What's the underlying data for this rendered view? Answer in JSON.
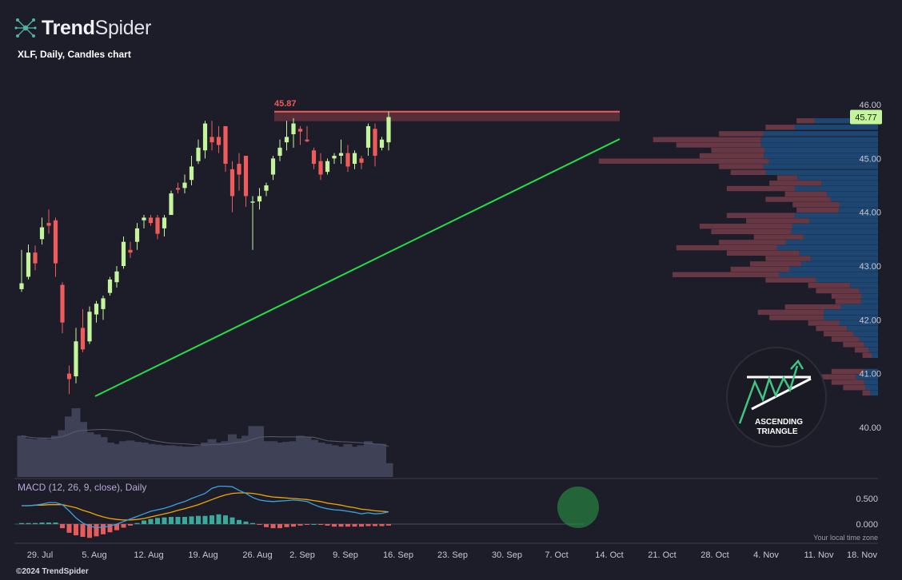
{
  "brand": {
    "name_bold": "Trend",
    "name_light": "Spider"
  },
  "subtitle": "XLF, Daily, Candles chart",
  "copyright": "©2024 TrendSpider",
  "chart_data": {
    "type": "candlestick",
    "symbol": "XLF",
    "interval": "Daily",
    "ylim": [
      39.9,
      46.1
    ],
    "y_ticks": [
      "40.00",
      "41.00",
      "42.00",
      "43.00",
      "44.00",
      "45.00",
      "46.00"
    ],
    "x_ticks": [
      "29. Jul",
      "5. Aug",
      "12. Aug",
      "19. Aug",
      "26. Aug",
      "2. Sep",
      "9. Sep",
      "16. Sep",
      "23. Sep",
      "30. Sep",
      "7. Oct",
      "14. Oct",
      "21. Oct",
      "28. Oct",
      "4. Nov",
      "11. Nov",
      "18. Nov"
    ],
    "last_price": "45.77",
    "resistance": {
      "label": "45.87",
      "value": 45.87
    },
    "trendline": {
      "from": {
        "date": "5. Aug",
        "value": 40.6
      },
      "to": {
        "date": "10. Oct",
        "value": 45.35
      }
    },
    "candles": [
      {
        "d": "2024-07-25",
        "o": 42.57,
        "h": 43.3,
        "l": 42.52,
        "c": 42.68
      },
      {
        "d": "2024-07-26",
        "o": 42.8,
        "h": 43.4,
        "l": 42.75,
        "c": 43.25
      },
      {
        "d": "2024-07-29",
        "o": 43.25,
        "h": 43.38,
        "l": 42.92,
        "c": 43.05
      },
      {
        "d": "2024-07-30",
        "o": 43.5,
        "h": 43.9,
        "l": 43.4,
        "c": 43.72
      },
      {
        "d": "2024-07-31",
        "o": 43.8,
        "h": 44.05,
        "l": 43.6,
        "c": 43.75
      },
      {
        "d": "2024-08-01",
        "o": 43.85,
        "h": 43.9,
        "l": 42.8,
        "c": 43.05
      },
      {
        "d": "2024-08-02",
        "o": 42.65,
        "h": 42.7,
        "l": 41.75,
        "c": 41.95
      },
      {
        "d": "2024-08-05",
        "o": 41.0,
        "h": 41.15,
        "l": 40.62,
        "c": 40.9
      },
      {
        "d": "2024-08-06",
        "o": 40.95,
        "h": 41.85,
        "l": 40.82,
        "c": 41.6
      },
      {
        "d": "2024-08-07",
        "o": 41.85,
        "h": 42.2,
        "l": 41.4,
        "c": 41.45
      },
      {
        "d": "2024-08-08",
        "o": 41.6,
        "h": 42.25,
        "l": 41.55,
        "c": 42.15
      },
      {
        "d": "2024-08-09",
        "o": 42.1,
        "h": 42.35,
        "l": 41.95,
        "c": 42.3
      },
      {
        "d": "2024-08-12",
        "o": 42.2,
        "h": 42.45,
        "l": 42.0,
        "c": 42.4
      },
      {
        "d": "2024-08-13",
        "o": 42.5,
        "h": 42.8,
        "l": 42.45,
        "c": 42.75
      },
      {
        "d": "2024-08-14",
        "o": 42.7,
        "h": 43.0,
        "l": 42.6,
        "c": 42.9
      },
      {
        "d": "2024-08-15",
        "o": 43.0,
        "h": 43.55,
        "l": 42.95,
        "c": 43.45
      },
      {
        "d": "2024-08-16",
        "o": 43.3,
        "h": 43.45,
        "l": 43.15,
        "c": 43.25
      },
      {
        "d": "2024-08-19",
        "o": 43.45,
        "h": 43.8,
        "l": 43.3,
        "c": 43.7
      },
      {
        "d": "2024-08-20",
        "o": 43.85,
        "h": 43.95,
        "l": 43.7,
        "c": 43.9
      },
      {
        "d": "2024-08-21",
        "o": 43.9,
        "h": 43.95,
        "l": 43.75,
        "c": 43.8
      },
      {
        "d": "2024-08-22",
        "o": 43.9,
        "h": 43.95,
        "l": 43.5,
        "c": 43.6
      },
      {
        "d": "2024-08-23",
        "o": 43.7,
        "h": 43.95,
        "l": 43.55,
        "c": 43.9
      },
      {
        "d": "2024-08-26",
        "o": 43.95,
        "h": 44.4,
        "l": 43.95,
        "c": 44.35
      },
      {
        "d": "2024-08-27",
        "o": 44.45,
        "h": 44.55,
        "l": 44.35,
        "c": 44.42
      },
      {
        "d": "2024-08-28",
        "o": 44.45,
        "h": 44.7,
        "l": 44.35,
        "c": 44.55
      },
      {
        "d": "2024-08-29",
        "o": 44.6,
        "h": 45.05,
        "l": 44.5,
        "c": 44.85
      },
      {
        "d": "2024-08-30",
        "o": 44.95,
        "h": 45.35,
        "l": 44.9,
        "c": 45.2
      },
      {
        "d": "2024-09-03",
        "o": 45.15,
        "h": 45.7,
        "l": 45.0,
        "c": 45.65
      },
      {
        "d": "2024-09-04",
        "o": 45.4,
        "h": 45.7,
        "l": 45.15,
        "c": 45.3
      },
      {
        "d": "2024-09-05",
        "o": 45.4,
        "h": 45.6,
        "l": 45.1,
        "c": 45.25
      },
      {
        "d": "2024-09-06",
        "o": 45.6,
        "h": 45.6,
        "l": 44.75,
        "c": 44.9
      },
      {
        "d": "2024-09-09",
        "o": 44.8,
        "h": 44.95,
        "l": 44.0,
        "c": 44.3
      },
      {
        "d": "2024-09-10",
        "o": 44.9,
        "h": 45.1,
        "l": 44.4,
        "c": 44.7
      },
      {
        "d": "2024-09-11",
        "o": 45.05,
        "h": 45.05,
        "l": 44.1,
        "c": 44.3
      },
      {
        "d": "2024-09-12",
        "o": 44.2,
        "h": 44.3,
        "l": 43.3,
        "c": 44.2
      },
      {
        "d": "2024-09-13",
        "o": 44.2,
        "h": 44.45,
        "l": 44.05,
        "c": 44.3
      },
      {
        "d": "2024-09-16",
        "o": 44.4,
        "h": 44.55,
        "l": 44.3,
        "c": 44.5
      },
      {
        "d": "2024-09-17",
        "o": 44.7,
        "h": 45.05,
        "l": 44.6,
        "c": 45.0
      },
      {
        "d": "2024-09-18",
        "o": 45.05,
        "h": 45.35,
        "l": 44.95,
        "c": 45.2
      },
      {
        "d": "2024-09-19",
        "o": 45.3,
        "h": 45.7,
        "l": 45.15,
        "c": 45.4
      },
      {
        "d": "2024-09-20",
        "o": 45.45,
        "h": 45.75,
        "l": 45.2,
        "c": 45.65
      },
      {
        "d": "2024-09-23",
        "o": 45.55,
        "h": 45.6,
        "l": 45.25,
        "c": 45.5
      },
      {
        "d": "2024-09-24",
        "o": 45.35,
        "h": 45.6,
        "l": 45.3,
        "c": 45.32
      },
      {
        "d": "2024-09-25",
        "o": 45.15,
        "h": 45.2,
        "l": 44.8,
        "c": 44.9
      },
      {
        "d": "2024-09-26",
        "o": 44.95,
        "h": 45.1,
        "l": 44.6,
        "c": 44.7
      },
      {
        "d": "2024-09-27",
        "o": 44.75,
        "h": 45.0,
        "l": 44.7,
        "c": 44.95
      },
      {
        "d": "2024-09-30",
        "o": 45.0,
        "h": 45.1,
        "l": 44.9,
        "c": 45.05
      },
      {
        "d": "2024-10-01",
        "o": 45.05,
        "h": 45.35,
        "l": 44.9,
        "c": 45.1
      },
      {
        "d": "2024-10-02",
        "o": 45.1,
        "h": 45.25,
        "l": 44.75,
        "c": 44.85
      },
      {
        "d": "2024-10-03",
        "o": 44.9,
        "h": 45.15,
        "l": 44.8,
        "c": 45.1
      },
      {
        "d": "2024-10-04",
        "o": 45.0,
        "h": 45.05,
        "l": 44.8,
        "c": 44.92
      },
      {
        "d": "2024-10-07",
        "o": 45.2,
        "h": 45.65,
        "l": 45.05,
        "c": 45.6
      },
      {
        "d": "2024-10-08",
        "o": 45.55,
        "h": 45.65,
        "l": 44.85,
        "c": 45.05
      },
      {
        "d": "2024-10-09",
        "o": 45.2,
        "h": 45.4,
        "l": 45.15,
        "c": 45.35
      },
      {
        "d": "2024-10-10",
        "o": 45.3,
        "h": 45.87,
        "l": 45.15,
        "c": 45.77
      }
    ],
    "volume_bars": [
      60,
      56,
      55,
      56,
      55,
      60,
      68,
      88,
      100,
      80,
      65,
      62,
      58,
      50,
      48,
      52,
      53,
      51,
      50,
      48,
      47,
      46,
      46,
      45,
      44,
      44,
      45,
      50,
      55,
      50,
      52,
      62,
      56,
      60,
      74,
      74,
      52,
      52,
      50,
      51,
      52,
      60,
      58,
      54,
      50,
      48,
      46,
      44,
      48,
      44,
      46,
      52,
      48,
      48,
      20
    ],
    "volume_profile": [
      {
        "price": 45.7,
        "total": 105,
        "up": 0.78
      },
      {
        "price": 45.58,
        "total": 145,
        "up": 0.74
      },
      {
        "price": 45.46,
        "total": 205,
        "up": 0.72
      },
      {
        "price": 45.35,
        "total": 290,
        "up": 0.52
      },
      {
        "price": 45.25,
        "total": 260,
        "up": 0.58
      },
      {
        "price": 45.15,
        "total": 215,
        "up": 0.68
      },
      {
        "price": 45.05,
        "total": 230,
        "up": 0.64
      },
      {
        "price": 44.95,
        "total": 360,
        "up": 0.39
      },
      {
        "price": 44.85,
        "total": 205,
        "up": 0.72
      },
      {
        "price": 44.74,
        "total": 190,
        "up": 0.76
      },
      {
        "price": 44.64,
        "total": 130,
        "up": 0.8
      },
      {
        "price": 44.54,
        "total": 140,
        "up": 0.52
      },
      {
        "price": 44.44,
        "total": 195,
        "up": 0.55
      },
      {
        "price": 44.34,
        "total": 120,
        "up": 0.55
      },
      {
        "price": 44.24,
        "total": 145,
        "up": 0.42
      },
      {
        "price": 44.14,
        "total": 110,
        "up": 0.45
      },
      {
        "price": 44.04,
        "total": 105,
        "up": 0.48
      },
      {
        "price": 43.94,
        "total": 195,
        "up": 0.55
      },
      {
        "price": 43.84,
        "total": 170,
        "up": 0.52
      },
      {
        "price": 43.74,
        "total": 230,
        "up": 0.48
      },
      {
        "price": 43.64,
        "total": 215,
        "up": 0.52
      },
      {
        "price": 43.54,
        "total": 160,
        "up": 0.6
      },
      {
        "price": 43.44,
        "total": 205,
        "up": 0.58
      },
      {
        "price": 43.34,
        "total": 260,
        "up": 0.5
      },
      {
        "price": 43.24,
        "total": 195,
        "up": 0.52
      },
      {
        "price": 43.14,
        "total": 145,
        "up": 0.6
      },
      {
        "price": 43.04,
        "total": 165,
        "up": 0.6
      },
      {
        "price": 42.94,
        "total": 190,
        "up": 0.6
      },
      {
        "price": 42.84,
        "total": 265,
        "up": 0.48
      },
      {
        "price": 42.74,
        "total": 145,
        "up": 0.55
      },
      {
        "price": 42.64,
        "total": 90,
        "up": 0.4
      },
      {
        "price": 42.54,
        "total": 80,
        "up": 0.3
      },
      {
        "price": 42.44,
        "total": 60,
        "up": 0.35
      },
      {
        "price": 42.34,
        "total": 55,
        "up": 0.4
      },
      {
        "price": 42.24,
        "total": 120,
        "up": 0.4
      },
      {
        "price": 42.14,
        "total": 155,
        "up": 0.45
      },
      {
        "price": 42.04,
        "total": 140,
        "up": 0.5
      },
      {
        "price": 41.94,
        "total": 90,
        "up": 0.55
      },
      {
        "price": 41.84,
        "total": 80,
        "up": 0.5
      },
      {
        "price": 41.74,
        "total": 70,
        "up": 0.45
      },
      {
        "price": 41.64,
        "total": 60,
        "up": 0.4
      },
      {
        "price": 41.54,
        "total": 45,
        "up": 0.4
      },
      {
        "price": 41.44,
        "total": 30,
        "up": 0.4
      },
      {
        "price": 41.34,
        "total": 20,
        "up": 0.4
      },
      {
        "price": 41.04,
        "total": 60,
        "up": 0.3
      },
      {
        "price": 40.94,
        "total": 80,
        "up": 0.35
      },
      {
        "price": 40.84,
        "total": 60,
        "up": 0.3
      },
      {
        "price": 40.74,
        "total": 45,
        "up": 0.35
      },
      {
        "price": 40.64,
        "total": 20,
        "up": 0.5
      }
    ],
    "macd": {
      "label": "MACD (12, 26, 9, close), Daily",
      "y_ticks": [
        "0.500",
        "0.000"
      ],
      "ylim": [
        -0.32,
        0.85
      ],
      "macd": [
        0.36,
        0.36,
        0.37,
        0.39,
        0.42,
        0.42,
        0.38,
        0.26,
        0.12,
        0.02,
        -0.04,
        -0.07,
        -0.06,
        -0.04,
        0.0,
        0.05,
        0.1,
        0.15,
        0.2,
        0.25,
        0.28,
        0.31,
        0.35,
        0.4,
        0.44,
        0.5,
        0.55,
        0.6,
        0.7,
        0.74,
        0.74,
        0.73,
        0.66,
        0.6,
        0.52,
        0.47,
        0.45,
        0.44,
        0.45,
        0.46,
        0.47,
        0.46,
        0.44,
        0.38,
        0.33,
        0.3,
        0.28,
        0.27,
        0.25,
        0.23,
        0.2,
        0.22,
        0.2,
        0.21,
        0.24
      ],
      "signal": [
        0.36,
        0.36,
        0.37,
        0.37,
        0.38,
        0.38,
        0.38,
        0.35,
        0.32,
        0.27,
        0.23,
        0.18,
        0.14,
        0.11,
        0.09,
        0.08,
        0.08,
        0.09,
        0.11,
        0.14,
        0.17,
        0.2,
        0.23,
        0.27,
        0.3,
        0.34,
        0.38,
        0.43,
        0.48,
        0.53,
        0.57,
        0.6,
        0.61,
        0.61,
        0.6,
        0.58,
        0.55,
        0.53,
        0.52,
        0.51,
        0.5,
        0.49,
        0.48,
        0.46,
        0.44,
        0.41,
        0.39,
        0.37,
        0.34,
        0.32,
        0.29,
        0.28,
        0.26,
        0.25,
        0.24
      ],
      "histogram": [
        0.02,
        0.02,
        0.02,
        0.03,
        0.03,
        0.03,
        -0.08,
        -0.17,
        -0.22,
        -0.25,
        -0.27,
        -0.24,
        -0.2,
        -0.16,
        -0.12,
        -0.07,
        -0.03,
        0.02,
        0.07,
        0.1,
        0.12,
        0.13,
        0.14,
        0.14,
        0.14,
        0.15,
        0.16,
        0.16,
        0.17,
        0.19,
        0.17,
        0.13,
        0.08,
        0.05,
        0.02,
        -0.01,
        -0.06,
        -0.08,
        -0.08,
        -0.06,
        -0.05,
        -0.03,
        -0.01,
        0.0,
        -0.01,
        -0.03,
        -0.05,
        -0.05,
        -0.05,
        -0.05,
        -0.05,
        -0.04,
        -0.04,
        -0.04,
        -0.03
      ]
    },
    "annotation_pattern": {
      "line1": "ASCENDING",
      "line2": "TRIANGLE"
    },
    "timezone_label": "Your local time zone",
    "colors": {
      "background": "#1d1d2a",
      "up": "#c4f59c",
      "down": "#ef5a5a",
      "trendline": "#22e045",
      "resistance": "#ef5a5a",
      "macd_line": "#3ba2e0",
      "signal_line": "#f0a500",
      "hist_up": "#3aa89a",
      "hist_down": "#e65b5b",
      "volume": "#3f4156",
      "vp_up": "#1e4a76",
      "vp_down": "#6e3a46"
    }
  }
}
